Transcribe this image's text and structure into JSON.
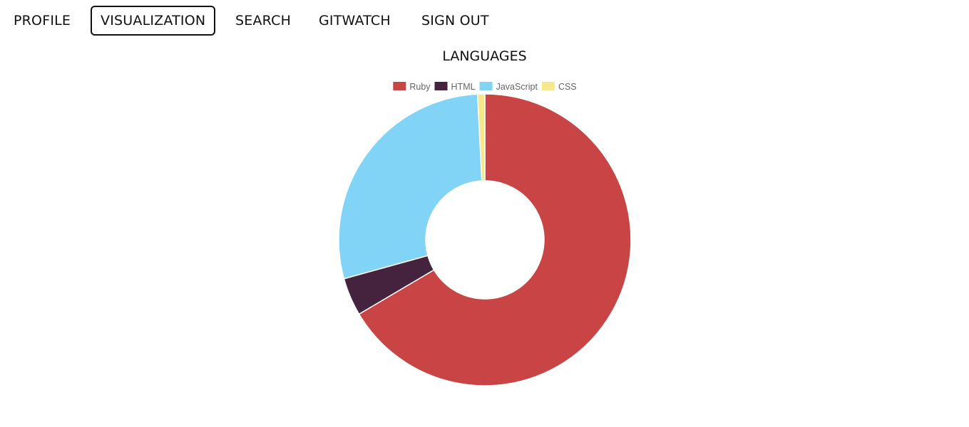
{
  "nav": {
    "items": [
      {
        "label": "PROFILE",
        "active": false
      },
      {
        "label": "VISUALIZATION",
        "active": true
      },
      {
        "label": "SEARCH",
        "active": false
      },
      {
        "label": "GITWATCH",
        "active": false
      },
      {
        "label": "SIGN OUT",
        "active": false
      }
    ]
  },
  "chart_data": {
    "type": "pie",
    "title": "LANGUAGES",
    "donut": true,
    "legend_position": "top",
    "categories": [
      "Ruby",
      "HTML",
      "JavaScript",
      "CSS"
    ],
    "values": [
      66.5,
      4.2,
      28.5,
      0.8
    ],
    "colors": [
      "#c94444",
      "#45233e",
      "#82d4f6",
      "#f6e88b"
    ]
  }
}
